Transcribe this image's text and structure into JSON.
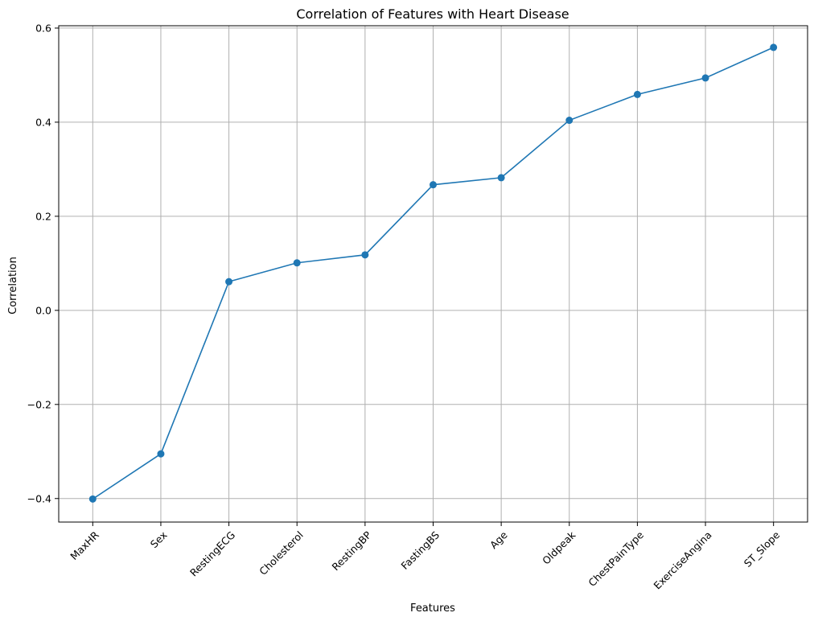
{
  "chart_data": {
    "type": "line",
    "title": "Correlation of Features with Heart Disease",
    "xlabel": "Features",
    "ylabel": "Correlation",
    "categories": [
      "MaxHR",
      "Sex",
      "RestingECG",
      "Cholesterol",
      "RestingBP",
      "FastingBS",
      "Age",
      "Oldpeak",
      "ChestPainType",
      "ExerciseAngina",
      "ST_Slope"
    ],
    "values": [
      -0.401,
      -0.305,
      0.061,
      0.101,
      0.118,
      0.267,
      0.282,
      0.404,
      0.459,
      0.494,
      0.559
    ],
    "ylim": [
      -0.45,
      0.605
    ],
    "yticks": [
      -0.4,
      -0.2,
      0.0,
      0.2,
      0.4,
      0.6
    ],
    "ytick_labels": [
      "−0.4",
      "−0.2",
      "0.0",
      "0.2",
      "0.4",
      "0.6"
    ],
    "grid": true,
    "marker": "circle",
    "color": "#1f77b4"
  }
}
